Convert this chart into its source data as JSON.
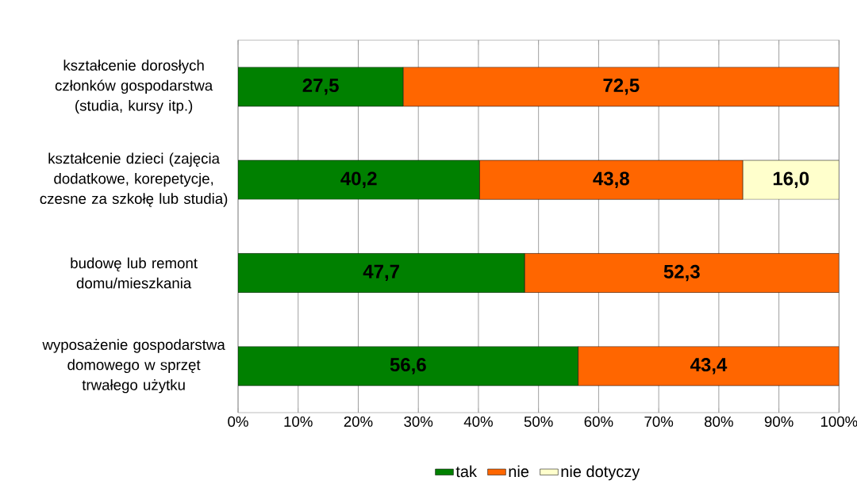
{
  "chart_data": {
    "type": "bar",
    "orientation": "horizontal",
    "stacked": true,
    "categories": [
      "kształcenie dorosłych członków gospodarstwa (studia, kursy itp.)",
      "kształcenie dzieci (zajęcia dodatkowe, korepetycje, czesne za szkołę lub studia)",
      "budowę lub remont domu/mieszkania",
      "wyposażenie gospodarstwa domowego w sprzęt trwałego użytku"
    ],
    "series": [
      {
        "name": "tak",
        "color": "#008000",
        "values": [
          27.5,
          40.2,
          47.7,
          56.6
        ],
        "value_labels": [
          "27,5",
          "40,2",
          "47,7",
          "56,6"
        ]
      },
      {
        "name": "nie",
        "color": "#ff6600",
        "values": [
          72.5,
          43.8,
          52.3,
          43.4
        ],
        "value_labels": [
          "72,5",
          "43,8",
          "52,3",
          "43,4"
        ]
      },
      {
        "name": "nie dotyczy",
        "color": "#ffffcc",
        "values": [
          null,
          16.0,
          null,
          null
        ],
        "value_labels": [
          null,
          "16,0",
          null,
          null
        ]
      }
    ],
    "xlim": [
      0,
      100
    ],
    "xticks": [
      {
        "value": 0,
        "label": "0%"
      },
      {
        "value": 10,
        "label": "10%"
      },
      {
        "value": 20,
        "label": "20%"
      },
      {
        "value": 30,
        "label": "30%"
      },
      {
        "value": 40,
        "label": "40%"
      },
      {
        "value": 50,
        "label": "50%"
      },
      {
        "value": 60,
        "label": "60%"
      },
      {
        "value": 70,
        "label": "70%"
      },
      {
        "value": 80,
        "label": "80%"
      },
      {
        "value": 90,
        "label": "90%"
      },
      {
        "value": 100,
        "label": "100%"
      }
    ],
    "grid": "x",
    "legend": "bottom"
  }
}
